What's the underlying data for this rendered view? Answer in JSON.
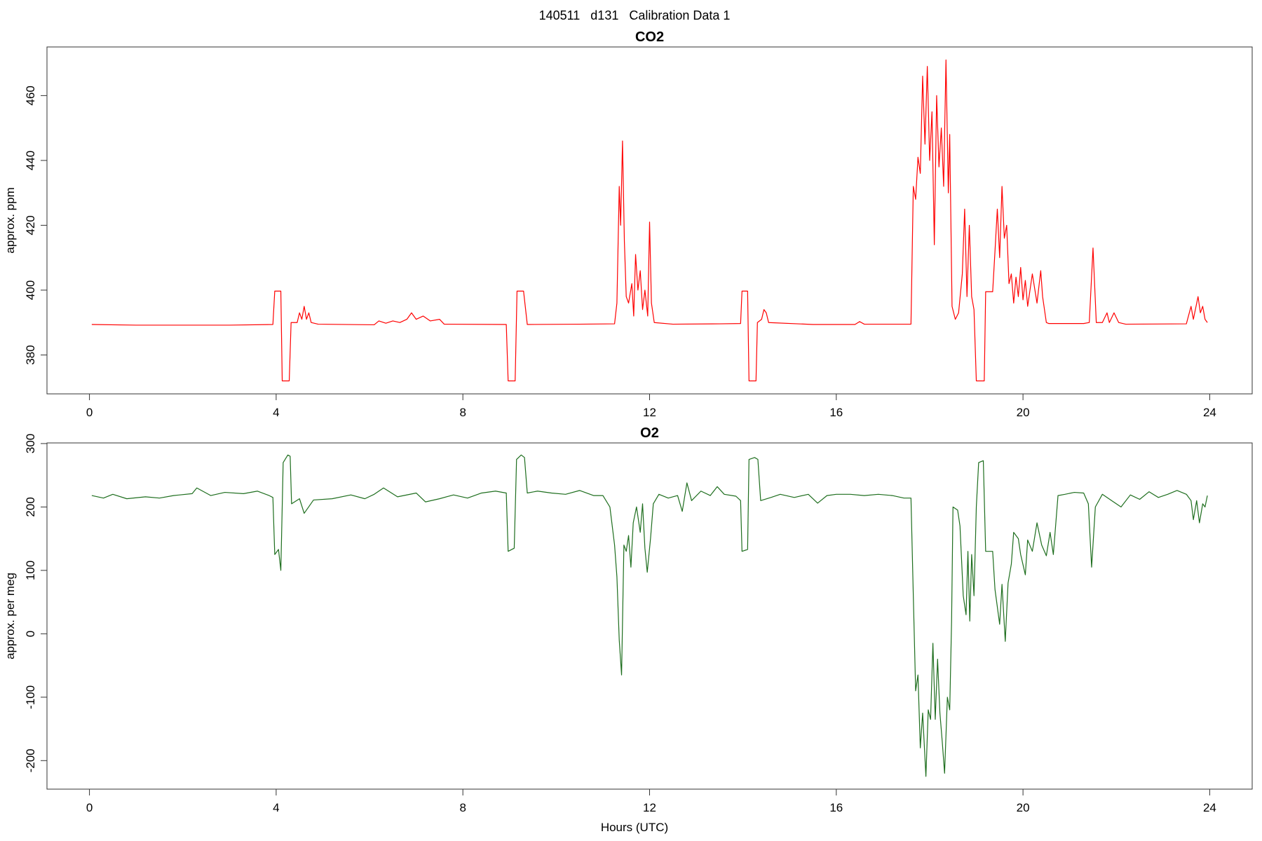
{
  "title": "140511   d131   Calibration Data 1",
  "chart_data": [
    {
      "type": "line",
      "title": "CO2",
      "y_label": "approx. ppm",
      "color": "#ff0000",
      "xlim": [
        -0.91,
        24.91
      ],
      "xticks": [
        0,
        4,
        8,
        12,
        16,
        20,
        24
      ],
      "ylim": [
        368,
        475
      ],
      "yticks": [
        380,
        400,
        420,
        440,
        460
      ],
      "x": [
        0.05,
        1,
        2,
        3,
        3.93,
        3.97,
        4.1,
        4.13,
        4.28,
        4.32,
        4.45,
        4.5,
        4.55,
        4.6,
        4.65,
        4.7,
        4.75,
        4.9,
        6.1,
        6.2,
        6.35,
        6.5,
        6.65,
        6.8,
        6.9,
        7.0,
        7.15,
        7.3,
        7.5,
        7.6,
        8.93,
        8.97,
        9.12,
        9.16,
        9.3,
        9.38,
        10.5,
        11.25,
        11.3,
        11.35,
        11.38,
        11.42,
        11.46,
        11.5,
        11.55,
        11.62,
        11.66,
        11.7,
        11.75,
        11.8,
        11.85,
        11.9,
        11.96,
        12.0,
        12.04,
        12.1,
        12.5,
        13.5,
        13.95,
        13.98,
        14.1,
        14.13,
        14.28,
        14.31,
        14.4,
        14.45,
        14.5,
        14.55,
        15.5,
        16.4,
        16.5,
        16.6,
        17.6,
        17.65,
        17.7,
        17.75,
        17.8,
        17.85,
        17.9,
        17.95,
        18.0,
        18.05,
        18.1,
        18.15,
        18.2,
        18.25,
        18.3,
        18.35,
        18.4,
        18.43,
        18.48,
        18.55,
        18.62,
        18.7,
        18.75,
        18.8,
        18.85,
        18.9,
        18.95,
        19.0,
        19.17,
        19.2,
        19.35,
        19.4,
        19.45,
        19.5,
        19.55,
        19.6,
        19.65,
        19.7,
        19.75,
        19.8,
        19.85,
        19.9,
        19.95,
        20.0,
        20.05,
        20.1,
        20.2,
        20.3,
        20.38,
        20.42,
        20.5,
        20.55,
        21.3,
        21.42,
        21.5,
        21.57,
        21.7,
        21.8,
        21.85,
        21.95,
        22.05,
        22.2,
        23.5,
        23.6,
        23.65,
        23.75,
        23.8,
        23.85,
        23.9,
        23.95
      ],
      "values": [
        389.4,
        389.2,
        389.2,
        389.2,
        389.4,
        399.7,
        399.7,
        372,
        372,
        390,
        390,
        393,
        391,
        395,
        391,
        393,
        390,
        389.5,
        389.3,
        390.5,
        389.8,
        390.5,
        390,
        391,
        393,
        391,
        392,
        390.5,
        391,
        389.5,
        389.4,
        372,
        372,
        399.7,
        399.7,
        389.4,
        389.5,
        389.6,
        396,
        432,
        420,
        446,
        415,
        398,
        396,
        402,
        392,
        411,
        400,
        406,
        394,
        400,
        392,
        421,
        396,
        390,
        389.5,
        389.6,
        389.7,
        399.7,
        399.7,
        372,
        372,
        390,
        391,
        394,
        393,
        390,
        389.4,
        389.4,
        390.3,
        389.5,
        389.5,
        432,
        428,
        441,
        436,
        466,
        445,
        469,
        440,
        455,
        414,
        460,
        438,
        450,
        432,
        471,
        430,
        448,
        395,
        391,
        393,
        405,
        425,
        398,
        420,
        398,
        394,
        372,
        372,
        399.5,
        399.5,
        412,
        425,
        410,
        432,
        416,
        420,
        402,
        405,
        396,
        404,
        398,
        407,
        397,
        403,
        395,
        405,
        396,
        406,
        398,
        390,
        389.7,
        389.7,
        390,
        413,
        390,
        390,
        393,
        390,
        393,
        390,
        389.5,
        389.6,
        395,
        391,
        398,
        393,
        395,
        391,
        390
      ]
    },
    {
      "type": "line",
      "title": "O2",
      "y_label": "approx. per meg",
      "x_label": "Hours (UTC)",
      "color": "#1e6e1e",
      "xlim": [
        -0.91,
        24.91
      ],
      "xticks": [
        0,
        4,
        8,
        12,
        16,
        20,
        24
      ],
      "ylim": [
        -245,
        301
      ],
      "yticks": [
        -200,
        -100,
        0,
        100,
        200,
        300
      ],
      "x": [
        0.05,
        0.3,
        0.5,
        0.8,
        1.2,
        1.5,
        1.8,
        2.2,
        2.3,
        2.6,
        2.9,
        3.3,
        3.6,
        3.85,
        3.93,
        3.97,
        4.05,
        4.1,
        4.15,
        4.25,
        4.3,
        4.33,
        4.5,
        4.6,
        4.8,
        5.2,
        5.6,
        5.9,
        6.1,
        6.3,
        6.6,
        7.0,
        7.2,
        7.5,
        7.8,
        8.1,
        8.4,
        8.7,
        8.93,
        8.97,
        9.1,
        9.15,
        9.25,
        9.32,
        9.38,
        9.6,
        9.9,
        10.2,
        10.5,
        10.8,
        11.0,
        11.15,
        11.25,
        11.3,
        11.35,
        11.4,
        11.45,
        11.5,
        11.55,
        11.6,
        11.65,
        11.72,
        11.8,
        11.85,
        11.9,
        11.95,
        12.02,
        12.08,
        12.2,
        12.4,
        12.6,
        12.7,
        12.8,
        12.9,
        13.1,
        13.3,
        13.45,
        13.6,
        13.85,
        13.95,
        13.98,
        14.1,
        14.13,
        14.25,
        14.32,
        14.38,
        14.6,
        14.8,
        15.1,
        15.4,
        15.6,
        15.8,
        16.0,
        16.3,
        16.6,
        16.9,
        17.2,
        17.45,
        17.6,
        17.65,
        17.7,
        17.75,
        17.8,
        17.85,
        17.92,
        17.97,
        18.02,
        18.07,
        18.12,
        18.17,
        18.22,
        18.27,
        18.32,
        18.38,
        18.43,
        18.47,
        18.5,
        18.6,
        18.65,
        18.72,
        18.78,
        18.82,
        18.86,
        18.9,
        18.95,
        19.0,
        19.05,
        19.15,
        19.2,
        19.35,
        19.4,
        19.5,
        19.55,
        19.62,
        19.68,
        19.75,
        19.8,
        19.9,
        19.95,
        20.05,
        20.1,
        20.2,
        20.3,
        20.4,
        20.5,
        20.58,
        20.65,
        20.75,
        20.9,
        21.1,
        21.3,
        21.4,
        21.47,
        21.55,
        21.7,
        21.9,
        22.1,
        22.3,
        22.5,
        22.7,
        22.9,
        23.1,
        23.3,
        23.5,
        23.6,
        23.65,
        23.72,
        23.78,
        23.85,
        23.9,
        23.95
      ],
      "values": [
        218,
        214,
        220,
        213,
        216,
        214,
        218,
        221,
        230,
        218,
        223,
        221,
        225,
        218,
        215,
        125,
        133,
        100,
        270,
        282,
        280,
        205,
        213,
        190,
        211,
        213,
        219,
        213,
        220,
        230,
        216,
        222,
        208,
        213,
        219,
        214,
        222,
        225,
        222,
        130,
        135,
        275,
        282,
        278,
        222,
        225,
        222,
        220,
        226,
        218,
        218,
        200,
        140,
        90,
        -10,
        -65,
        140,
        130,
        155,
        105,
        175,
        200,
        160,
        205,
        135,
        97,
        150,
        205,
        220,
        214,
        218,
        193,
        238,
        210,
        225,
        218,
        232,
        220,
        217,
        210,
        130,
        133,
        275,
        278,
        275,
        210,
        215,
        220,
        215,
        220,
        206,
        218,
        220,
        220,
        218,
        220,
        218,
        214,
        214,
        60,
        -90,
        -65,
        -180,
        -125,
        -225,
        -120,
        -135,
        -15,
        -135,
        -40,
        -125,
        -170,
        -220,
        -100,
        -120,
        20,
        200,
        195,
        170,
        60,
        30,
        130,
        20,
        125,
        60,
        200,
        270,
        273,
        130,
        130,
        70,
        15,
        78,
        -12,
        80,
        110,
        160,
        150,
        125,
        93,
        148,
        130,
        175,
        140,
        123,
        160,
        125,
        218,
        220,
        223,
        222,
        205,
        105,
        200,
        220,
        210,
        200,
        219,
        212,
        224,
        215,
        220,
        226,
        220,
        210,
        180,
        210,
        175,
        205,
        200,
        218
      ]
    }
  ]
}
